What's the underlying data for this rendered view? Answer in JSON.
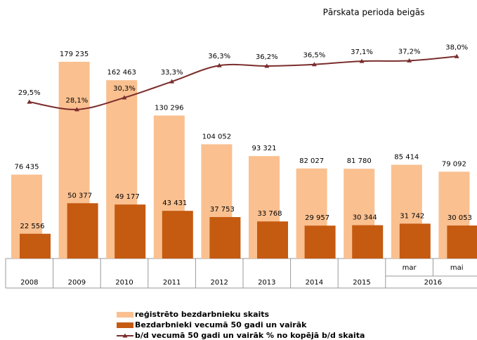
{
  "chart_data": {
    "type": "bar_line",
    "title": "Pārskata perioda beigās",
    "subcategories": [
      null,
      null,
      null,
      null,
      null,
      null,
      null,
      null,
      "mar",
      "mai"
    ],
    "groups": [
      {
        "label": "2008",
        "size": 1
      },
      {
        "label": "2009",
        "size": 1
      },
      {
        "label": "2010",
        "size": 1
      },
      {
        "label": "2011",
        "size": 1
      },
      {
        "label": "2012",
        "size": 1
      },
      {
        "label": "2013",
        "size": 1
      },
      {
        "label": "2014",
        "size": 1
      },
      {
        "label": "2015",
        "size": 1
      },
      {
        "label": "2016",
        "size": 2
      }
    ],
    "ylim": [
      0,
      200000
    ],
    "y2lim": [
      10,
      40
    ],
    "series": [
      {
        "name": "reģistrēto bezdarbnieku skaits",
        "color": "#fac090",
        "type": "bar",
        "values": [
          76435,
          179235,
          162463,
          130296,
          104052,
          93321,
          82027,
          81780,
          85414,
          79092
        ],
        "value_labels": [
          "76 435",
          "179 235",
          "162 463",
          "130 296",
          "104 052",
          "93 321",
          "82 027",
          "81 780",
          "85 414",
          "79 092"
        ]
      },
      {
        "name": "Bezdarbnieki vecumā 50 gadi un vairāk",
        "color": "#c55a11",
        "type": "bar",
        "values": [
          22556,
          50377,
          49177,
          43431,
          37753,
          33768,
          29957,
          30344,
          31742,
          30053
        ],
        "value_labels": [
          "22 556",
          "50 377",
          "49 177",
          "43 431",
          "37 753",
          "33 768",
          "29 957",
          "30 344",
          "31 742",
          "30 053"
        ]
      },
      {
        "name": "b/d vecumā 50 gadi un vairāk % no kopējā b/d skaita",
        "color": "#7b2c2c",
        "type": "line",
        "axis": "y2",
        "values": [
          29.5,
          28.1,
          30.3,
          33.3,
          36.3,
          36.2,
          36.5,
          37.1,
          37.2,
          38.0
        ],
        "value_labels": [
          "29,5%",
          "28,1%",
          "30,3%",
          "33,3%",
          "36,3%",
          "36,2%",
          "36,5%",
          "37,1%",
          "37,2%",
          "38,0%"
        ]
      }
    ]
  }
}
